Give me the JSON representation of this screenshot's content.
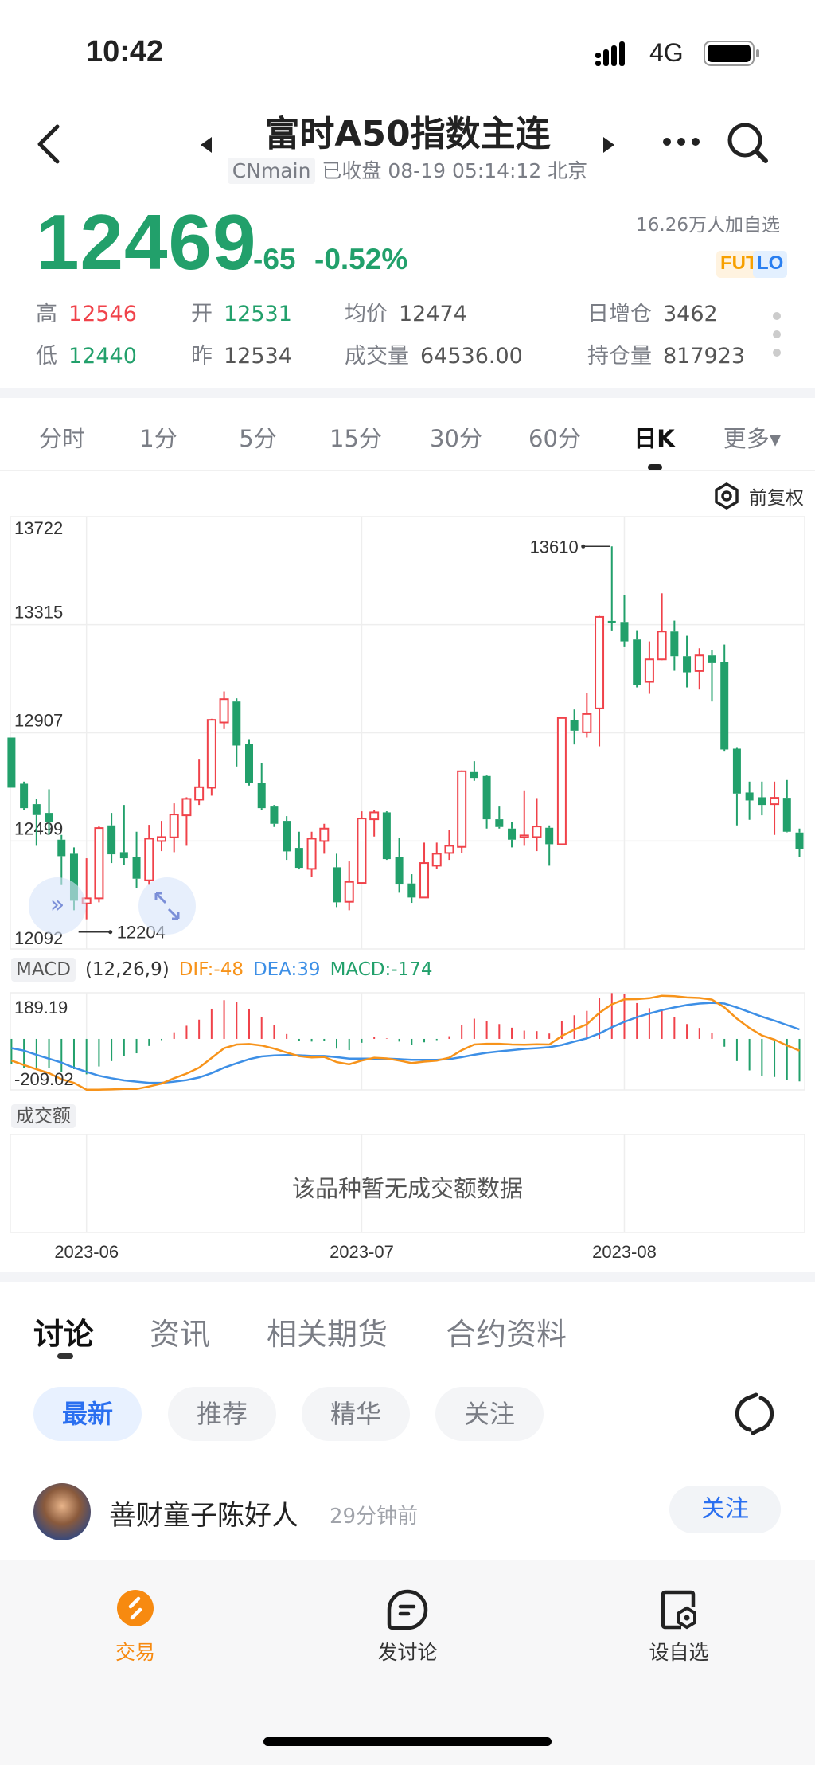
{
  "status": {
    "time": "10:42",
    "network": "4G"
  },
  "header": {
    "title": "富时A50指数主连",
    "code": "CNmain",
    "status_line": "已收盘 08-19 05:14:12 北京"
  },
  "quote": {
    "price": "12469",
    "change": "-65",
    "change_pct": "-0.52%",
    "followers": "16.26万人加自选",
    "badge_fut": "FUT",
    "badge_lo": "LO",
    "stats": [
      {
        "label": "高",
        "value": "12546",
        "color": "#f0424a"
      },
      {
        "label": "开",
        "value": "12531",
        "color": "#22a06b"
      },
      {
        "label": "均价",
        "value": "12474",
        "color": "#555555"
      },
      {
        "label": "日增仓",
        "value": "3462",
        "color": "#555555"
      },
      {
        "label": "低",
        "value": "12440",
        "color": "#22a06b"
      },
      {
        "label": "昨",
        "value": "12534",
        "color": "#555555"
      },
      {
        "label": "成交量",
        "value": "64536.00",
        "color": "#555555"
      },
      {
        "label": "持仓量",
        "value": "817923",
        "color": "#555555"
      }
    ]
  },
  "period_tabs": [
    {
      "label": "分时"
    },
    {
      "label": "1分"
    },
    {
      "label": "5分"
    },
    {
      "label": "15分"
    },
    {
      "label": "30分"
    },
    {
      "label": "60分"
    },
    {
      "label": "日K",
      "active": true
    },
    {
      "label": "更多▾"
    }
  ],
  "adjust_label": "前复权",
  "colors": {
    "up": "#f0424a",
    "down": "#22a06b",
    "dif": "#f7931a",
    "dea": "#3d8fe6"
  },
  "chart_data": {
    "type": "candlestick",
    "ylim": [
      12092,
      13722
    ],
    "y_ticks": [
      "13722",
      "13315",
      "12907",
      "12499",
      "12092"
    ],
    "grid_values": [
      13315,
      12907,
      12499
    ],
    "x_ticks": [
      {
        "index": 6,
        "label": "2023-06"
      },
      {
        "index": 28,
        "label": "2023-07"
      },
      {
        "index": 49,
        "label": "2023-08"
      }
    ],
    "max_label": "13610",
    "max_index": 48,
    "max_value": 13610,
    "min_label": "12204",
    "min_index": 6,
    "min_value": 12204,
    "ohlc": [
      [
        12889,
        12889,
        12700,
        12700
      ],
      [
        12715,
        12723,
        12617,
        12623
      ],
      [
        12638,
        12658,
        12481,
        12597
      ],
      [
        12605,
        12694,
        12522,
        12570
      ],
      [
        12504,
        12522,
        12333,
        12442
      ],
      [
        12451,
        12475,
        12238,
        12274
      ],
      [
        12264,
        12434,
        12204,
        12283
      ],
      [
        12283,
        12555,
        12268,
        12548
      ],
      [
        12558,
        12605,
        12416,
        12449
      ],
      [
        12457,
        12635,
        12410,
        12434
      ],
      [
        12440,
        12534,
        12321,
        12357
      ],
      [
        12351,
        12560,
        12333,
        12508
      ],
      [
        12499,
        12575,
        12461,
        12514
      ],
      [
        12513,
        12641,
        12457,
        12599
      ],
      [
        12596,
        12664,
        12481,
        12658
      ],
      [
        12655,
        12806,
        12635,
        12702
      ],
      [
        12700,
        12960,
        12670,
        12956
      ],
      [
        12946,
        13063,
        12921,
        13034
      ],
      [
        13025,
        13037,
        12780,
        12859
      ],
      [
        12865,
        12883,
        12708,
        12717
      ],
      [
        12717,
        12794,
        12617,
        12623
      ],
      [
        12629,
        12635,
        12552,
        12564
      ],
      [
        12575,
        12593,
        12428,
        12460
      ],
      [
        12473,
        12534,
        12392,
        12398
      ],
      [
        12394,
        12534,
        12363,
        12508
      ],
      [
        12499,
        12564,
        12451,
        12546
      ],
      [
        12400,
        12451,
        12250,
        12268
      ],
      [
        12270,
        12422,
        12238,
        12345
      ],
      [
        12341,
        12611,
        12339,
        12584
      ],
      [
        12581,
        12617,
        12516,
        12607
      ],
      [
        12607,
        12611,
        12428,
        12431
      ],
      [
        12440,
        12510,
        12304,
        12335
      ],
      [
        12339,
        12374,
        12266,
        12286
      ],
      [
        12286,
        12493,
        12286,
        12416
      ],
      [
        12406,
        12493,
        12395,
        12451
      ],
      [
        12454,
        12540,
        12428,
        12481
      ],
      [
        12477,
        12765,
        12454,
        12762
      ],
      [
        12759,
        12800,
        12726,
        12737
      ],
      [
        12744,
        12749,
        12546,
        12581
      ],
      [
        12581,
        12629,
        12546,
        12552
      ],
      [
        12546,
        12570,
        12475,
        12504
      ],
      [
        12513,
        12690,
        12481,
        12520
      ],
      [
        12514,
        12661,
        12461,
        12554
      ],
      [
        12549,
        12558,
        12406,
        12487
      ],
      [
        12487,
        12966,
        12485,
        12963
      ],
      [
        12954,
        12995,
        12863,
        12915
      ],
      [
        12909,
        13057,
        12889,
        12978
      ],
      [
        12999,
        13348,
        12856,
        13344
      ],
      [
        13329,
        13610,
        13293,
        13321
      ],
      [
        13325,
        13426,
        13230,
        13252
      ],
      [
        13259,
        13294,
        13078,
        13086
      ],
      [
        13099,
        13252,
        13054,
        13184
      ],
      [
        13184,
        13433,
        13181,
        13289
      ],
      [
        13289,
        13330,
        13141,
        13196
      ],
      [
        13196,
        13273,
        13078,
        13135
      ],
      [
        13140,
        13226,
        13070,
        13199
      ],
      [
        13199,
        13218,
        13025,
        13170
      ],
      [
        13175,
        13240,
        12839,
        12844
      ],
      [
        12847,
        12853,
        12558,
        12678
      ],
      [
        12682,
        12723,
        12579,
        12652
      ],
      [
        12664,
        12723,
        12596,
        12635
      ],
      [
        12638,
        12723,
        12522,
        12662
      ],
      [
        12662,
        12729,
        12532,
        12534
      ],
      [
        12531,
        12546,
        12440,
        12469
      ]
    ]
  },
  "macd": {
    "label": "MACD",
    "params": "(12,26,9)",
    "dif_label": "DIF:-48",
    "dea_label": "DEA:39",
    "macd_label": "MACD:-174",
    "ylim": [
      -209.02,
      189.19
    ],
    "y_max_label": "189.19",
    "y_min_label": "-209.02",
    "hist": [
      -102,
      -118,
      -118,
      -118,
      -135,
      -124,
      -145,
      -113,
      -91,
      -70,
      -59,
      -29,
      -5,
      27,
      54,
      79,
      124,
      159,
      153,
      124,
      89,
      56,
      20,
      -8,
      -11,
      -8,
      -40,
      -46,
      -16,
      8,
      2,
      -11,
      -25,
      -14,
      -5,
      11,
      57,
      83,
      74,
      61,
      46,
      34,
      32,
      22,
      74,
      97,
      115,
      169,
      188,
      183,
      147,
      126,
      118,
      91,
      61,
      45,
      25,
      -32,
      -91,
      -129,
      -153,
      -156,
      -167,
      -174
    ],
    "dea": [
      -38,
      -48,
      -65,
      -81,
      -97,
      -118,
      -135,
      -151,
      -161,
      -170,
      -175,
      -180,
      -180,
      -175,
      -169,
      -158,
      -140,
      -118,
      -100,
      -83,
      -72,
      -68,
      -66,
      -67,
      -70,
      -70,
      -75,
      -81,
      -81,
      -81,
      -81,
      -83,
      -86,
      -86,
      -86,
      -83,
      -75,
      -65,
      -57,
      -51,
      -46,
      -41,
      -38,
      -34,
      -25,
      -11,
      2,
      22,
      48,
      70,
      89,
      104,
      118,
      129,
      139,
      145,
      148,
      145,
      129,
      110,
      91,
      75,
      57,
      39
    ],
    "dif": [
      -89,
      -107,
      -124,
      -140,
      -165,
      -180,
      -208,
      -208,
      -207,
      -205,
      -205,
      -195,
      -183,
      -161,
      -142,
      -118,
      -78,
      -38,
      -23,
      -21,
      -27,
      -40,
      -56,
      -71,
      -76,
      -74,
      -95,
      -104,
      -89,
      -77,
      -80,
      -89,
      -99,
      -93,
      -89,
      -77,
      -46,
      -23,
      -20,
      -20,
      -23,
      -24,
      -22,
      -23,
      12,
      38,
      60,
      107,
      142,
      162,
      163,
      167,
      177,
      175,
      170,
      168,
      161,
      129,
      83,
      45,
      14,
      -3,
      -27,
      -48
    ]
  },
  "turnover": {
    "label": "成交额",
    "empty_text": "该品种暂无成交额数据"
  },
  "discussion": {
    "tabs": [
      {
        "label": "讨论",
        "active": true
      },
      {
        "label": "资讯"
      },
      {
        "label": "相关期货"
      },
      {
        "label": "合约资料"
      }
    ],
    "filters": [
      {
        "label": "最新",
        "active": true
      },
      {
        "label": "推荐"
      },
      {
        "label": "精华"
      },
      {
        "label": "关注"
      }
    ],
    "post": {
      "author": "善财童子陈好人",
      "time": "29分钟前",
      "follow_label": "关注"
    }
  },
  "bottom_nav": [
    {
      "label": "交易",
      "icon": "trade-icon"
    },
    {
      "label": "发讨论",
      "icon": "post-discussion-icon"
    },
    {
      "label": "设自选",
      "icon": "add-watchlist-icon"
    }
  ]
}
